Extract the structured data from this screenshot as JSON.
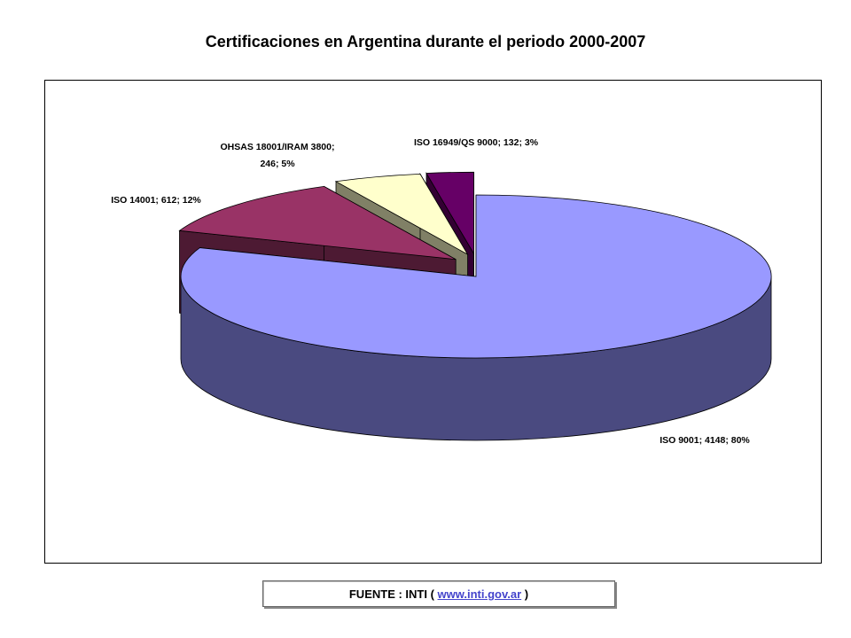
{
  "chart_data": {
    "type": "pie3d",
    "title": "Certificaciones en Argentina durante el periodo 2000-2007",
    "values": [
      4148,
      612,
      246,
      132
    ],
    "value_labels": [
      "ISO 9001; 4148; 80%",
      "ISO 14001; 612; 12%",
      "OHSAS 18001/IRAM 3800;\n246; 5%",
      "ISO 16949/QS 9000; 132; 3%"
    ],
    "colors": [
      "#9999ff",
      "#993366",
      "#ffffcc",
      "#660066"
    ],
    "side_colors": [
      "#4a4a80",
      "#4d1a33",
      "#808066",
      "#330033"
    ]
  },
  "source": {
    "prefix": "FUENTE : INTI (",
    "link": "www.inti.gov.ar",
    "suffix": ")"
  }
}
